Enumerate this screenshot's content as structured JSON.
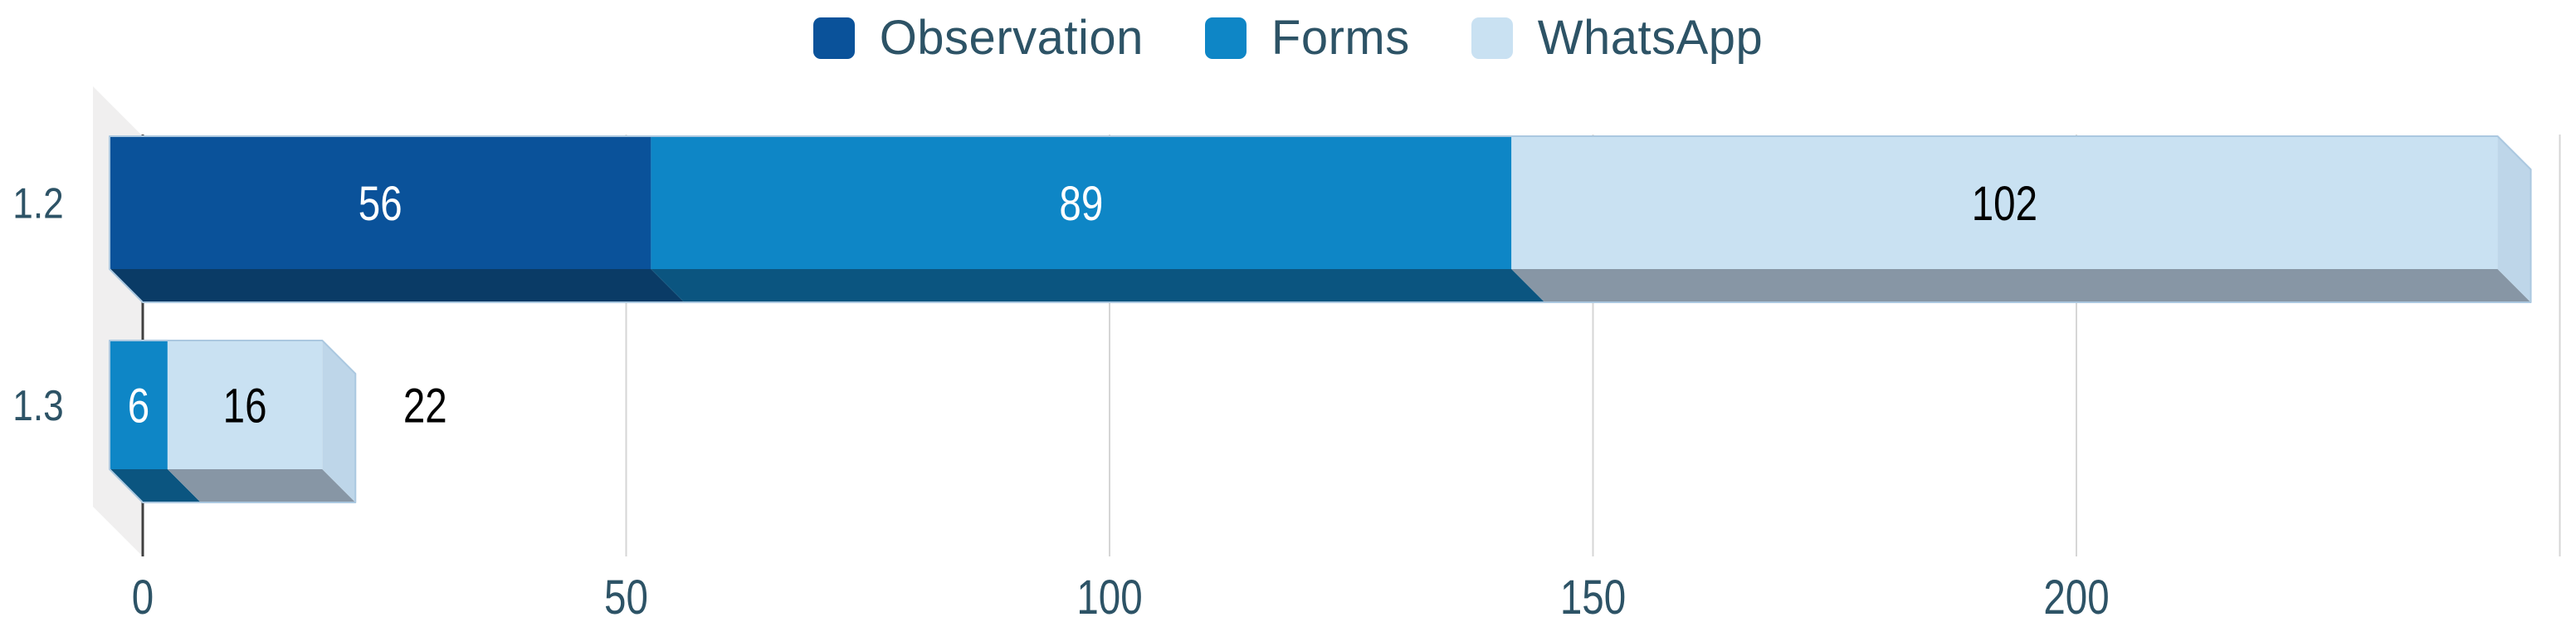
{
  "chart_data": {
    "type": "bar",
    "variant": "3d-stacked-horizontal",
    "title": "",
    "categories": [
      "1.2",
      "1.3"
    ],
    "series": [
      {
        "name": "Observation",
        "color": "#0A529A",
        "bottom_color": "#0A3B66",
        "side_color": "#09498A",
        "label_color": "#FFFFFF",
        "values": [
          56,
          0
        ]
      },
      {
        "name": "Forms",
        "color": "#0E86C6",
        "bottom_color": "#0B5580",
        "side_color": "#0C78B2",
        "label_color": "#FFFFFF",
        "values": [
          89,
          6
        ]
      },
      {
        "name": "WhatsApp",
        "color": "#C9E1F2",
        "bottom_color": "#8796A5",
        "side_color": "#BED6E9",
        "label_color": "#000000",
        "values": [
          102,
          16
        ]
      }
    ],
    "segment_labels": [
      [
        "56",
        "89",
        "102"
      ],
      [
        "",
        "6",
        "16"
      ]
    ],
    "outside_total_labels": [
      "",
      "22"
    ],
    "x_axis": {
      "tick_labels": [
        "0",
        "50",
        "100",
        "150",
        "200"
      ],
      "tick_values": [
        0,
        50,
        100,
        150,
        200
      ],
      "gridline_values": [
        50,
        100,
        150,
        200,
        250
      ],
      "min": 0,
      "label_color": "#2D5366"
    },
    "category_label_color": "#2D5366",
    "legend": {
      "position": "top",
      "text_color": "#2D5366"
    },
    "colors": {
      "background": "#FFFFFF",
      "wall": "#F0EFEF",
      "gridline": "#D6D6D6",
      "axis_line": "#404040",
      "bar_outline": "#ABC8E0",
      "total_label": "#000000"
    }
  }
}
